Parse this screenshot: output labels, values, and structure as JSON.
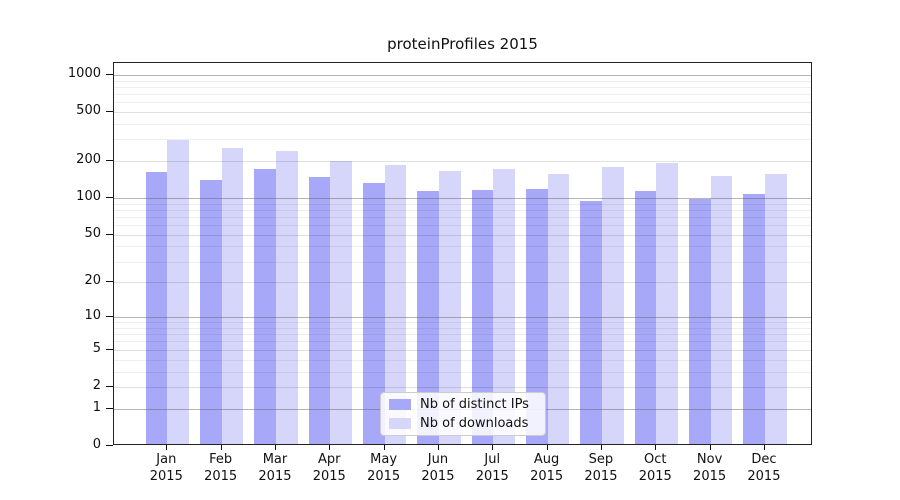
{
  "chart_data": {
    "type": "bar",
    "title": "proteinProfiles 2015",
    "categories": [
      "Jan 2015",
      "Feb 2015",
      "Mar 2015",
      "Apr 2015",
      "May 2015",
      "Jun 2015",
      "Jul 2015",
      "Aug 2015",
      "Sep 2015",
      "Oct 2015",
      "Nov 2015",
      "Dec 2015"
    ],
    "series": [
      {
        "name": "Nb of distinct IPs",
        "color": "#a8a8f8",
        "values": [
          158,
          136,
          167,
          142,
          127,
          111,
          112,
          115,
          92,
          110,
          94,
          104
        ]
      },
      {
        "name": "Nb of downloads",
        "color": "#d6d6fa",
        "values": [
          288,
          244,
          232,
          192,
          178,
          159,
          167,
          152,
          174,
          186,
          145,
          150
        ]
      }
    ],
    "y_axis": {
      "scale": "log1p",
      "ticks": [
        0,
        1,
        2,
        5,
        10,
        20,
        50,
        100,
        200,
        500,
        1000
      ],
      "minor_gridlines": [
        3,
        4,
        6,
        7,
        8,
        9,
        30,
        40,
        60,
        70,
        80,
        90,
        300,
        400,
        600,
        700,
        800,
        900
      ],
      "decade_gridlines": [
        1,
        10,
        100,
        1000
      ],
      "range_max": 1250
    },
    "grid": true,
    "legend_position": "lower center",
    "colors": {
      "bar_ips": "#a8a8f8",
      "bar_downloads": "#d6d6fa",
      "grid_major": "#b6b6b6",
      "grid_minor": "#ececec",
      "frame": "#222222"
    }
  }
}
